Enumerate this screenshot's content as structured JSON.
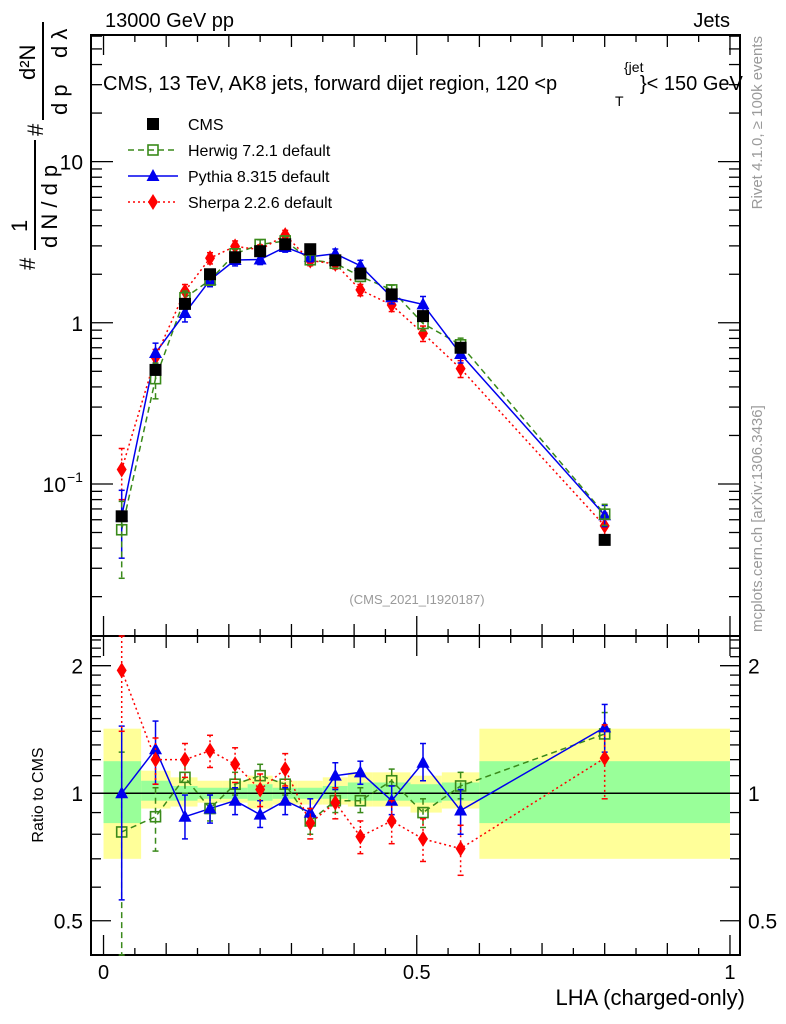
{
  "header": {
    "left_label": "13000 GeV pp",
    "right_label": "Jets"
  },
  "side_labels": {
    "rivet": "Rivet 4.1.0, ≥ 100k events",
    "mcplots": "mcplots.cern.ch [arXiv:1306.3436]"
  },
  "analysis_id": "(CMS_2021_I1920187)",
  "chart_data": [
    {
      "type": "line",
      "panel": "main",
      "title": "CMS, 13 TeV, AK8 jets, forward dijet region, 120 <p_T^{jet}< 150 GeV",
      "title_parts": {
        "pre": "CMS, 13 TeV, AK8 jets, forward dijet region, 120 <p",
        "sup": "{jet",
        "sub": "T",
        "post": "}< 150 GeV"
      },
      "ylabel": "1/dN/dp_T · d²N/dp_T dλ",
      "ylabel_parts": {
        "hash": "#",
        "one": "1",
        "denom": "d N / d p",
        "T": "T",
        "num": "d²N",
        "denom2": "d p",
        "dl": "d λ"
      },
      "xlabel": "",
      "yscale": "log",
      "ylim": [
        0.0114,
        61
      ],
      "xlim": [
        -0.02,
        1.016
      ],
      "ytick_labels": [
        {
          "value": 10,
          "label": "10"
        },
        {
          "value": 1,
          "label": "1"
        },
        {
          "value": 0.1,
          "label": "10",
          "sup": "−1"
        }
      ],
      "legend_position": "top-left",
      "x": [
        0.029,
        0.083,
        0.13,
        0.17,
        0.21,
        0.25,
        0.29,
        0.33,
        0.37,
        0.41,
        0.46,
        0.51,
        0.57,
        0.8
      ],
      "series": [
        {
          "name": "CMS",
          "color": "#000000",
          "marker": "square-filled",
          "line": "none",
          "values": [
            0.063,
            0.51,
            1.31,
            2.0,
            2.55,
            2.78,
            3.07,
            2.86,
            2.44,
            2.02,
            1.5,
            1.1,
            0.7,
            0.045
          ]
        },
        {
          "name": "Herwig 7.2.1 default",
          "color": "#3a8a1a",
          "marker": "square-open",
          "line": "dashed",
          "values": [
            0.052,
            0.45,
            1.43,
            1.84,
            2.68,
            3.06,
            3.22,
            2.46,
            2.34,
            1.94,
            1.6,
            0.99,
            0.73,
            0.065
          ],
          "errors_rel": [
            0.5,
            0.25,
            0.1,
            0.07,
            0.07,
            0.07,
            0.07,
            0.07,
            0.07,
            0.07,
            0.07,
            0.1,
            0.1,
            0.15
          ]
        },
        {
          "name": "Pythia 8.315 default",
          "color": "#0000ee",
          "marker": "triangle-filled",
          "line": "solid",
          "values": [
            0.063,
            0.65,
            1.15,
            1.84,
            2.45,
            2.47,
            2.95,
            2.57,
            2.68,
            2.26,
            1.44,
            1.3,
            0.64,
            0.064
          ],
          "errors_rel": [
            0.45,
            0.15,
            0.12,
            0.09,
            0.08,
            0.07,
            0.07,
            0.07,
            0.07,
            0.08,
            0.09,
            0.12,
            0.12,
            0.15
          ]
        },
        {
          "name": "Sherpa 2.2.6 default",
          "color": "#ff0000",
          "marker": "diamond-filled",
          "line": "dotted",
          "values": [
            0.123,
            0.61,
            1.57,
            2.52,
            2.98,
            2.84,
            3.5,
            2.43,
            2.32,
            1.6,
            1.29,
            0.86,
            0.52,
            0.055
          ],
          "errors_rel": [
            0.35,
            0.12,
            0.1,
            0.08,
            0.08,
            0.07,
            0.07,
            0.07,
            0.07,
            0.08,
            0.09,
            0.11,
            0.12,
            0.2
          ]
        }
      ]
    },
    {
      "type": "line",
      "panel": "ratio",
      "ylabel": "Ratio to CMS",
      "xlabel": "LHA (charged-only)",
      "yscale": "log",
      "ylim": [
        0.415,
        2.35
      ],
      "xlim": [
        -0.02,
        1.016
      ],
      "ytick_labels": [
        {
          "value": 2,
          "label": "2"
        },
        {
          "value": 1,
          "label": "1"
        },
        {
          "value": 0.5,
          "label": "0.5"
        }
      ],
      "xtick_labels": [
        {
          "value": 0,
          "label": "0"
        },
        {
          "value": 0.5,
          "label": "0.5"
        },
        {
          "value": 1,
          "label": "1"
        }
      ],
      "reference_line": 1,
      "bands": {
        "bin_edges": [
          0.0,
          0.06,
          0.107,
          0.15,
          0.19,
          0.23,
          0.27,
          0.31,
          0.35,
          0.39,
          0.43,
          0.49,
          0.54,
          0.6,
          1.0
        ],
        "yellow": {
          "color": "#ffff99",
          "low": [
            0.7,
            0.92,
            0.93,
            0.95,
            0.95,
            0.92,
            0.94,
            0.94,
            0.94,
            0.93,
            0.93,
            0.9,
            0.92,
            0.7
          ],
          "high": [
            1.42,
            1.13,
            1.09,
            1.07,
            1.07,
            1.1,
            1.07,
            1.07,
            1.09,
            1.12,
            1.12,
            1.1,
            1.12,
            1.42
          ]
        },
        "green": {
          "color": "#99ff99",
          "low": [
            0.85,
            0.96,
            0.96,
            0.97,
            0.97,
            0.96,
            0.97,
            0.97,
            0.97,
            0.96,
            0.96,
            0.95,
            0.96,
            0.85
          ],
          "high": [
            1.19,
            1.07,
            1.04,
            1.03,
            1.03,
            1.05,
            1.03,
            1.03,
            1.04,
            1.06,
            1.06,
            1.05,
            1.06,
            1.19
          ]
        }
      },
      "x": [
        0.029,
        0.083,
        0.13,
        0.17,
        0.21,
        0.25,
        0.29,
        0.33,
        0.37,
        0.41,
        0.46,
        0.51,
        0.57,
        0.8
      ],
      "series": [
        {
          "name": "Herwig 7.2.1 default",
          "color": "#3a8a1a",
          "marker": "square-open",
          "line": "dashed",
          "values": [
            0.81,
            0.88,
            1.09,
            0.92,
            1.05,
            1.1,
            1.05,
            0.86,
            0.96,
            0.96,
            1.07,
            0.9,
            1.04,
            1.38
          ],
          "err_low": [
            0.38,
            0.73,
            1.0,
            0.86,
            0.99,
            1.03,
            0.99,
            0.8,
            0.9,
            0.9,
            1.0,
            0.83,
            0.97,
            1.2
          ],
          "err_high": [
            1.25,
            1.03,
            1.18,
            0.99,
            1.12,
            1.17,
            1.12,
            0.92,
            1.03,
            1.03,
            1.14,
            0.97,
            1.12,
            1.55
          ]
        },
        {
          "name": "Pythia 8.315 default",
          "color": "#0000ee",
          "marker": "triangle-filled",
          "line": "solid",
          "values": [
            1.0,
            1.27,
            0.88,
            0.92,
            0.96,
            0.89,
            0.96,
            0.9,
            1.1,
            1.12,
            0.96,
            1.18,
            0.91,
            1.43
          ],
          "err_low": [
            0.56,
            1.05,
            0.78,
            0.85,
            0.89,
            0.83,
            0.89,
            0.84,
            1.02,
            1.05,
            0.89,
            1.07,
            0.8,
            1.25
          ],
          "err_high": [
            1.44,
            1.48,
            0.99,
            0.99,
            1.03,
            0.96,
            1.03,
            0.97,
            1.18,
            1.19,
            1.04,
            1.31,
            1.02,
            1.62
          ]
        },
        {
          "name": "Sherpa 2.2.6 default",
          "color": "#ff0000",
          "marker": "diamond-filled",
          "line": "dotted",
          "values": [
            1.95,
            1.2,
            1.2,
            1.26,
            1.17,
            1.02,
            1.14,
            0.85,
            0.95,
            0.79,
            0.86,
            0.78,
            0.74,
            1.21
          ],
          "err_low": [
            1.4,
            1.05,
            1.09,
            1.15,
            1.06,
            0.93,
            1.04,
            0.78,
            0.87,
            0.72,
            0.76,
            0.69,
            0.64,
            0.97
          ],
          "err_high": [
            2.4,
            1.35,
            1.31,
            1.37,
            1.28,
            1.11,
            1.24,
            0.92,
            1.03,
            0.86,
            0.96,
            0.87,
            0.84,
            1.45
          ]
        }
      ]
    }
  ]
}
